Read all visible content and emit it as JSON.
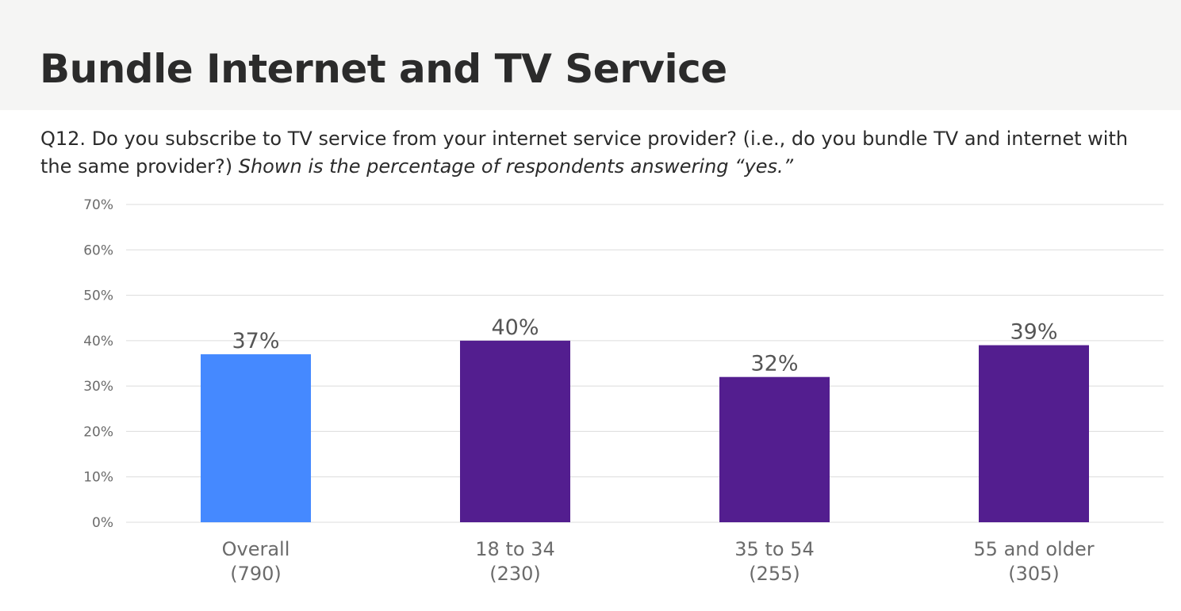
{
  "header": {
    "title": "Bundle Internet and TV Service"
  },
  "question": {
    "text": "Q12. Do you subscribe to TV service from your internet service provider?  (i.e., do you bundle TV and internet with the same provider?) ",
    "emphasis": "Shown is the percentage of respondents answering “yes.”"
  },
  "colors": {
    "overall": "#4589ff",
    "age_group": "#531e8f",
    "gridline": "#dcdcdc",
    "header_band": "#f5f5f4"
  },
  "chart_data": {
    "type": "bar",
    "categories": [
      "Overall",
      "18 to 34",
      "35 to 54",
      "55 and older"
    ],
    "sample_sizes": [
      "(790)",
      "(230)",
      "(255)",
      "(305)"
    ],
    "values": [
      37,
      40,
      32,
      39
    ],
    "data_labels": [
      "37%",
      "40%",
      "32%",
      "39%"
    ],
    "ylim": [
      0,
      70
    ],
    "yticks": [
      "0%",
      "10%",
      "20%",
      "30%",
      "40%",
      "50%",
      "60%",
      "70%"
    ],
    "grid": true,
    "legend": "none"
  }
}
